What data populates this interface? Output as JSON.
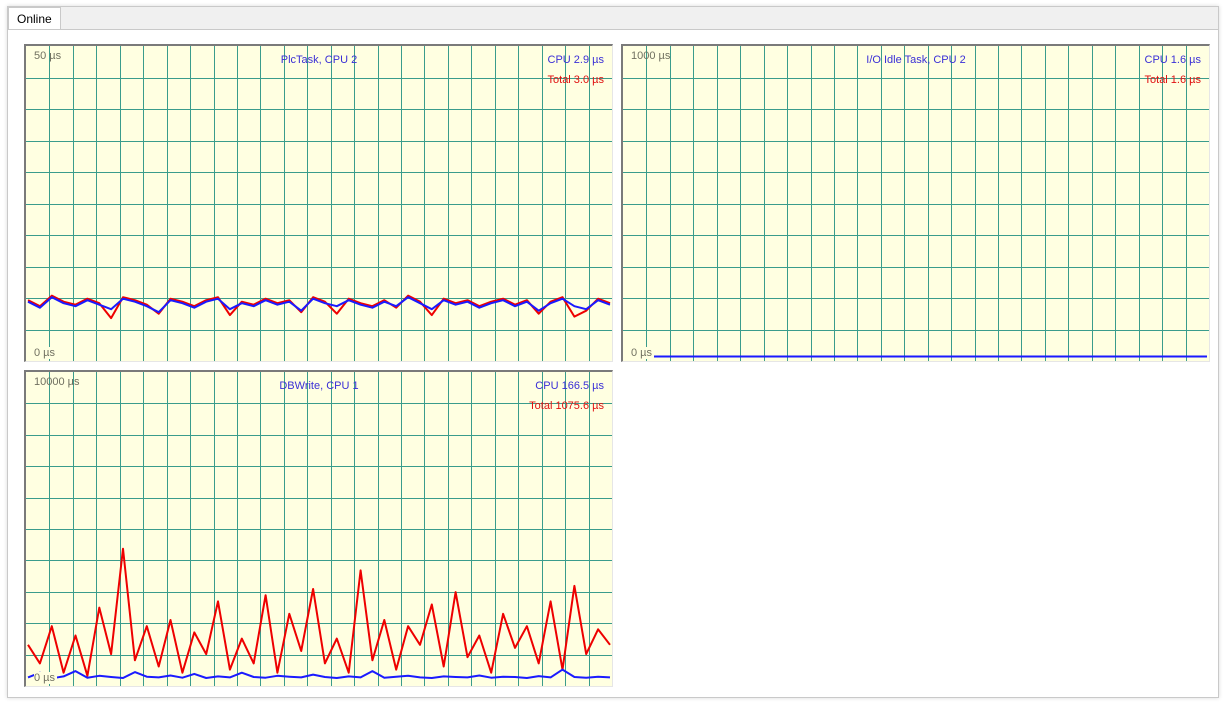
{
  "window": {
    "tab_label": "Online"
  },
  "colors": {
    "cpu_series": "#1a1aff",
    "total_series": "#ee0000",
    "grid": "#3a9c8c",
    "background": "#ffffe1",
    "label": "#3a2fd6"
  },
  "charts": [
    {
      "id": "plctask",
      "title": "PlcTask, CPU 2",
      "ymax_label": "50 µs",
      "ymin_label": "0 µs",
      "cpu_label": "CPU 2.9 µs",
      "total_label": "Total 3.0 µs"
    },
    {
      "id": "io-idle",
      "title": "I/O Idle Task, CPU 2",
      "ymax_label": "1000 µs",
      "ymin_label": "0 µs",
      "cpu_label": "CPU 1.6 µs",
      "total_label": "Total 1.6 µs"
    },
    {
      "id": "dbwrite",
      "title": "DBWrite, CPU 1",
      "ymax_label": "10000 µs",
      "ymin_label": "0 µs",
      "cpu_label": "CPU 166.5 µs",
      "total_label": "Total 1075.6 µs"
    }
  ],
  "chart_data": [
    {
      "type": "line",
      "title": "PlcTask, CPU 2",
      "ylim": [
        0,
        50
      ],
      "grid": true,
      "series": [
        {
          "name": "CPU",
          "values": [
            2.9,
            2.5,
            3.2,
            2.8,
            2.6,
            3.0,
            2.7,
            2.4,
            3.1,
            2.9,
            2.6,
            2.2,
            3.0,
            2.8,
            2.5,
            2.9,
            3.1,
            2.4,
            2.8,
            2.6,
            3.0,
            2.7,
            2.9,
            2.3,
            3.1,
            2.8,
            2.6,
            3.0,
            2.7,
            2.5,
            2.9,
            2.6,
            3.2,
            2.8,
            2.4,
            3.0,
            2.7,
            2.9,
            2.5,
            2.8,
            3.0,
            2.6,
            2.9,
            2.3,
            2.8,
            3.1,
            2.6,
            2.4,
            3.0,
            2.7
          ]
        },
        {
          "name": "Total",
          "values": [
            3.0,
            2.6,
            3.3,
            2.9,
            2.7,
            3.1,
            2.8,
            1.8,
            3.2,
            3.0,
            2.7,
            2.1,
            3.1,
            2.9,
            2.6,
            3.0,
            3.2,
            2.0,
            2.9,
            2.7,
            3.1,
            2.8,
            3.0,
            2.2,
            3.2,
            2.9,
            2.1,
            3.1,
            2.8,
            2.6,
            3.0,
            2.5,
            3.3,
            2.9,
            2.0,
            3.1,
            2.8,
            3.0,
            2.6,
            2.9,
            3.1,
            2.7,
            3.0,
            2.1,
            2.9,
            3.2,
            1.9,
            2.3,
            3.1,
            2.8
          ]
        }
      ]
    },
    {
      "type": "line",
      "title": "I/O Idle Task, CPU 2",
      "ylim": [
        0,
        1000
      ],
      "grid": true,
      "series": [
        {
          "name": "CPU",
          "values": [
            1.6,
            1.6,
            1.6,
            1.6,
            1.6,
            1.6,
            1.6,
            1.6,
            1.6,
            1.6,
            1.6,
            1.6,
            1.6,
            1.6,
            1.6,
            1.6,
            1.6,
            1.6,
            1.6,
            1.6
          ]
        },
        {
          "name": "Total",
          "values": [
            1.6,
            1.6,
            1.6,
            1.6,
            1.6,
            1.6,
            1.6,
            1.6,
            1.6,
            1.6,
            1.6,
            1.6,
            1.6,
            1.6,
            1.6,
            1.6,
            1.6,
            1.6,
            1.6,
            1.6
          ]
        }
      ]
    },
    {
      "type": "line",
      "title": "DBWrite, CPU 1",
      "ylim": [
        0,
        10000
      ],
      "grid": true,
      "series": [
        {
          "name": "CPU",
          "values": [
            150,
            300,
            120,
            180,
            350,
            140,
            200,
            160,
            130,
            320,
            170,
            150,
            210,
            140,
            260,
            130,
            180,
            150,
            300,
            160,
            140,
            200,
            170,
            150,
            240,
            160,
            130,
            180,
            150,
            350,
            140,
            170,
            200,
            150,
            130,
            180,
            160,
            150,
            210,
            140,
            170,
            160,
            130,
            190,
            150,
            400,
            160,
            140,
            170,
            150
          ]
        },
        {
          "name": "Total",
          "values": [
            1200,
            600,
            1800,
            300,
            1500,
            200,
            2400,
            900,
            4300,
            700,
            1800,
            500,
            2000,
            300,
            1600,
            900,
            2600,
            400,
            1400,
            600,
            2800,
            300,
            2200,
            1000,
            3000,
            600,
            1400,
            300,
            3600,
            700,
            2000,
            400,
            1800,
            1200,
            2500,
            500,
            2900,
            800,
            1500,
            300,
            2200,
            1100,
            1800,
            600,
            2600,
            400,
            3100,
            900,
            1700,
            1200
          ]
        }
      ]
    }
  ]
}
